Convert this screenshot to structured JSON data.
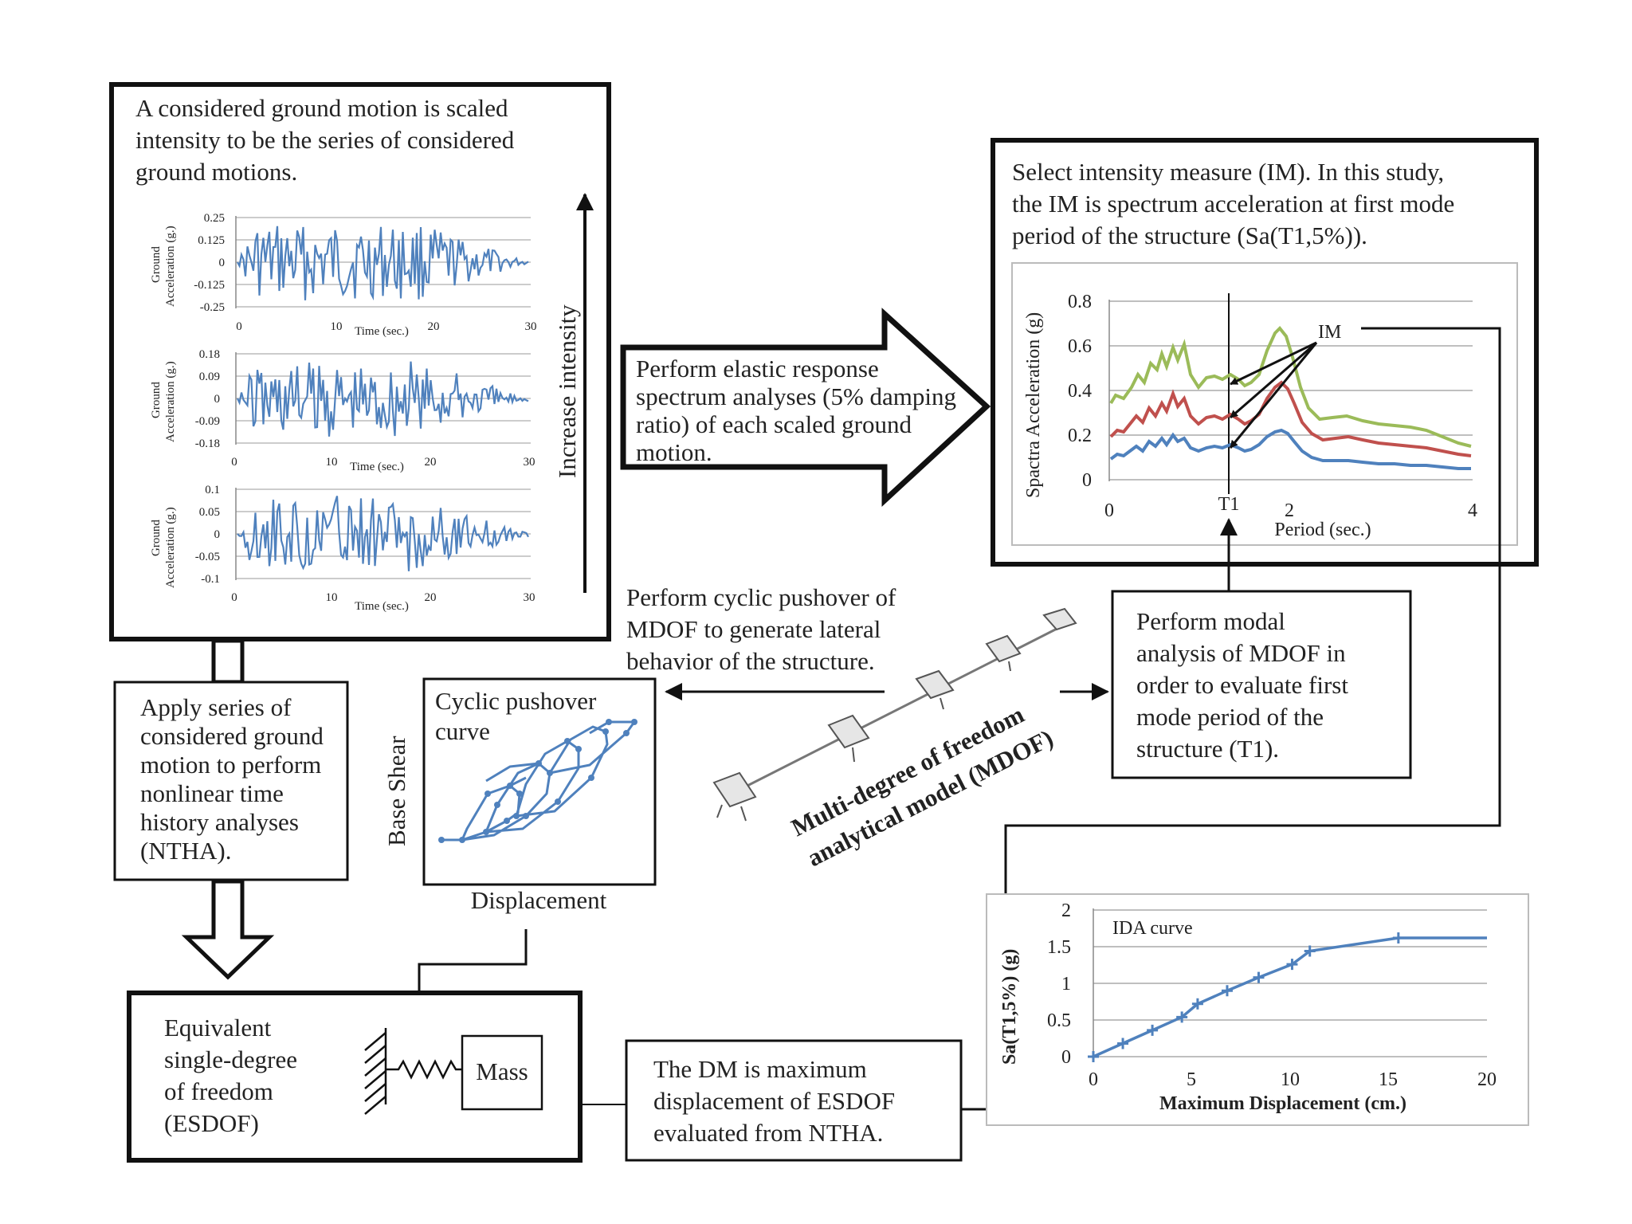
{
  "ground_motion_box": {
    "text_lines": [
      "A considered ground motion is scaled",
      "intensity to be the series of considered",
      "ground motions."
    ],
    "increase_label": "Increase intensity",
    "charts": [
      {
        "ylabel_lines": [
          "Ground",
          "Acceleration (g.)"
        ],
        "yticks": [
          "0.25",
          "0.125",
          "0",
          "-0.125",
          "-0.25"
        ],
        "xticks": [
          "0",
          "10",
          "20",
          "30"
        ],
        "xlabel": "Time (sec.)"
      },
      {
        "ylabel_lines": [
          "Ground",
          "Acceleration (g.)"
        ],
        "yticks": [
          "0.18",
          "0.09",
          "0",
          "-0.09",
          "-0.18"
        ],
        "xticks": [
          "0",
          "10",
          "20",
          "30"
        ],
        "xlabel": "Time (sec.)"
      },
      {
        "ylabel_lines": [
          "Ground",
          "Acceleration (g.)"
        ],
        "yticks": [
          "0.1",
          "0.05",
          "0",
          "-0.05",
          "-0.1"
        ],
        "xticks": [
          "0",
          "10",
          "20",
          "30"
        ],
        "xlabel": "Time (sec.)"
      }
    ]
  },
  "response_spectrum_arrow": {
    "text_lines": [
      "Perform elastic response",
      "spectrum analyses (5% damping",
      "ratio) of each scaled ground",
      "motion."
    ]
  },
  "im_box": {
    "text_lines": [
      "Select intensity measure (IM). In this study,",
      "the IM is spectrum acceleration at first mode",
      "period of the structure (Sa(T1,5%))."
    ],
    "chart": {
      "ylabel": "Spactra Acceleration (g)",
      "xlabel": "Period (sec.)",
      "yticks": [
        "0.8",
        "0.6",
        "0.4",
        "0.2",
        "0"
      ],
      "xticks": [
        "0",
        "2",
        "4"
      ],
      "t1_label": "T1",
      "im_label": "IM",
      "series_colors": [
        "#9bbb59",
        "#c0504d",
        "#4f81bd"
      ]
    }
  },
  "cyclic_pushover_text": {
    "text_lines": [
      "Perform cyclic pushover of",
      "MDOF to generate lateral",
      "behavior of the structure."
    ]
  },
  "modal_box": {
    "text_lines": [
      "Perform modal",
      "analysis of MDOF in",
      "order to evaluate first",
      "mode period of the",
      "structure (T1)."
    ]
  },
  "mdof_label": {
    "text_lines": [
      "Multi-degree of freedom",
      "analytical model (MDOF)"
    ]
  },
  "nonlinear_box": {
    "text_lines": [
      "Apply series of",
      "considered ground",
      "motion to perform",
      "nonlinear time",
      "history analyses",
      "(NTHA)."
    ]
  },
  "pushover_chart": {
    "title_lines": [
      "Cyclic pushover",
      "curve"
    ],
    "ylabel": "Base Shear",
    "xlabel": "Displacement",
    "color": "#4f81bd"
  },
  "esdof_box": {
    "text_lines": [
      "Equivalent",
      "single-degree",
      "of freedom",
      "(ESDOF)"
    ],
    "mass_label": "Mass"
  },
  "dm_box": {
    "text_lines": [
      "The DM is maximum",
      "displacement of ESDOF",
      "evaluated from NTHA."
    ]
  },
  "ida_chart": {
    "ylabel": "Sa(T1,5%) (g)",
    "xlabel": "Maximum Displacement (cm.)",
    "yticks": [
      "2",
      "1.5",
      "1",
      "0.5",
      "0"
    ],
    "xticks": [
      "0",
      "5",
      "10",
      "15",
      "20"
    ],
    "legend": "IDA curve",
    "color": "#4f81bd"
  },
  "chart_data": {
    "type": "line",
    "title": "IDA curve",
    "xlabel": "Maximum Displacement (cm.)",
    "ylabel": "Sa(T1,5%) (g)",
    "xlim": [
      0,
      20
    ],
    "ylim": [
      0,
      2
    ],
    "x": [
      0,
      1.5,
      3.0,
      4.5,
      5.3,
      6.8,
      8.4,
      10.1,
      11.0,
      15.5,
      20.0
    ],
    "values": [
      0,
      0.18,
      0.36,
      0.54,
      0.72,
      0.9,
      1.08,
      1.26,
      1.44,
      1.62,
      1.62
    ]
  }
}
